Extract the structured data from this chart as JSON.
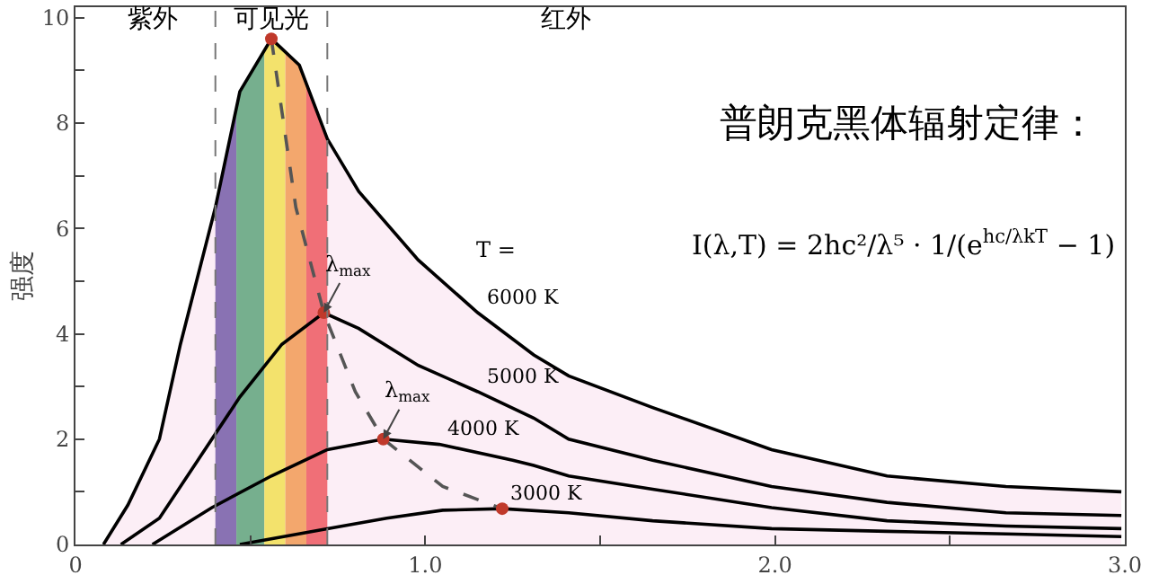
{
  "chart_data": {
    "type": "line",
    "title": "普朗克黑体辐射定律：",
    "ylabel": "强度",
    "annotations": [
      "I(λ,T) = 2hc²/λ⁵ · 1/(e$^{hc/λkT}$ − 1)",
      "紫外",
      "可见光",
      "红外",
      "T =",
      {
        "text": "λ$_{max}$",
        "x": 0.71,
        "y": 4.4
      },
      {
        "text": "λ$_{max}$",
        "x": 0.88,
        "y": 2.0
      }
    ],
    "series": [
      {
        "name": "6000 K",
        "type": "area",
        "color": "#000000",
        "x": [
          0.08,
          0.15,
          0.24,
          0.3,
          0.4,
          0.47,
          0.56,
          0.64,
          0.72,
          0.81,
          0.98,
          1.15,
          1.31,
          1.41,
          1.65,
          1.99,
          2.32,
          2.66,
          2.99
        ],
        "values": [
          0,
          0.75,
          2.0,
          3.8,
          6.4,
          8.6,
          9.6,
          9.1,
          7.7,
          6.7,
          5.4,
          4.4,
          3.6,
          3.2,
          2.6,
          1.8,
          1.3,
          1.1,
          1.0
        ]
      },
      {
        "name": "5000 K",
        "color": "#000000",
        "x": [
          0.13,
          0.24,
          0.35,
          0.47,
          0.59,
          0.71,
          0.81,
          0.98,
          1.15,
          1.31,
          1.41,
          1.65,
          1.99,
          2.32,
          2.66,
          2.99
        ],
        "values": [
          0,
          0.5,
          1.6,
          2.8,
          3.8,
          4.4,
          4.1,
          3.4,
          2.9,
          2.4,
          2.0,
          1.6,
          1.1,
          0.8,
          0.6,
          0.55
        ]
      },
      {
        "name": "4000 K",
        "color": "#000000",
        "x": [
          0.22,
          0.39,
          0.56,
          0.72,
          0.88,
          1.04,
          1.25,
          1.31,
          1.41,
          1.65,
          1.99,
          2.32,
          2.66,
          2.99
        ],
        "values": [
          0,
          0.7,
          1.3,
          1.8,
          2.0,
          1.9,
          1.6,
          1.5,
          1.3,
          1.05,
          0.7,
          0.45,
          0.35,
          0.3
        ]
      },
      {
        "name": "3000 K",
        "color": "#000000",
        "x": [
          0.47,
          0.72,
          0.89,
          1.05,
          1.22,
          1.41,
          1.65,
          1.99,
          2.32,
          2.66,
          2.99
        ],
        "values": [
          0,
          0.3,
          0.5,
          0.65,
          0.68,
          0.6,
          0.45,
          0.3,
          0.25,
          0.2,
          0.15
        ]
      },
      {
        "type": "line",
        "line_style": "dashed",
        "color": "#555555",
        "x": [
          0.56,
          0.63,
          0.71,
          0.8,
          0.88,
          1.05,
          1.22
        ],
        "values": [
          9.6,
          6.4,
          4.4,
          2.9,
          2.0,
          1.1,
          0.68
        ]
      },
      {
        "type": "scatter",
        "marker": "circle",
        "color": "#c0392b",
        "x": [
          0.56,
          0.71,
          0.88,
          1.22
        ],
        "values": [
          9.6,
          4.4,
          2.0,
          0.68
        ]
      }
    ],
    "bands": [
      {
        "axis": "x",
        "from": 0.4,
        "to": 0.46,
        "color": "#5b4ea0"
      },
      {
        "axis": "x",
        "from": 0.46,
        "to": 0.54,
        "color": "#3fa56a"
      },
      {
        "axis": "x",
        "from": 0.54,
        "to": 0.6,
        "color": "#f2ee3a"
      },
      {
        "axis": "x",
        "from": 0.6,
        "to": 0.66,
        "color": "#f39a3c"
      },
      {
        "axis": "x",
        "from": 0.66,
        "to": 0.72,
        "color": "#ee4a4a"
      }
    ],
    "ref_lines": [
      {
        "axis": "x",
        "value": 0.4,
        "line_style": "dashed",
        "color": "#777777"
      },
      {
        "axis": "x",
        "value": 0.72,
        "line_style": "dashed",
        "color": "#777777"
      }
    ],
    "xlim": [
      0,
      3.0
    ],
    "xticks": [
      0,
      {
        "value": 0.5,
        "label": null
      },
      {
        "value": 1.0,
        "label": "1.0"
      },
      {
        "value": 1.5,
        "label": null
      },
      {
        "value": 2.0,
        "label": "2.0"
      },
      {
        "value": 2.5,
        "label": null
      },
      {
        "value": 3.0,
        "label": "3.0"
      }
    ],
    "ylim": [
      0,
      10.2
    ],
    "yticks": [
      0,
      {
        "value": 1,
        "label": null
      },
      2,
      {
        "value": 3,
        "label": null
      },
      4,
      {
        "value": 5,
        "label": null
      },
      6,
      {
        "value": 7,
        "label": null
      },
      8,
      {
        "value": 9,
        "label": null
      },
      10
    ],
    "grid": false,
    "legend": false
  }
}
